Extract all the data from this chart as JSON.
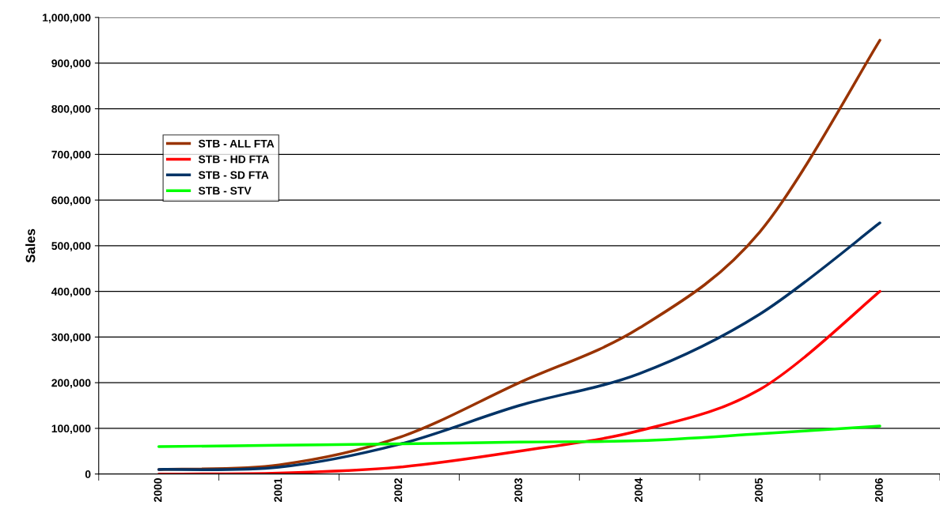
{
  "chart_data": {
    "type": "line",
    "ylabel": "Sales",
    "categories": [
      "2000",
      "2001",
      "2002",
      "2003",
      "2004",
      "2005",
      "2006"
    ],
    "series": [
      {
        "name": "STB - ALL FTA",
        "color": "#993300",
        "values": [
          10000,
          20000,
          80000,
          200000,
          320000,
          530000,
          950000
        ]
      },
      {
        "name": "STB - HD FTA",
        "color": "#ff0000",
        "values": [
          0,
          2000,
          15000,
          50000,
          95000,
          185000,
          400000
        ]
      },
      {
        "name": "STB - SD FTA",
        "color": "#003366",
        "values": [
          10000,
          15000,
          65000,
          150000,
          220000,
          350000,
          550000
        ]
      },
      {
        "name": "STB - STV",
        "color": "#00ff00",
        "values": [
          60000,
          63000,
          66000,
          70000,
          73000,
          88000,
          105000
        ]
      }
    ],
    "ylim": [
      0,
      1000000
    ],
    "yticks": [
      {
        "value": 0,
        "label": "0"
      },
      {
        "value": 100000,
        "label": "100,000"
      },
      {
        "value": 200000,
        "label": "200,000"
      },
      {
        "value": 300000,
        "label": "300,000"
      },
      {
        "value": 400000,
        "label": "400,000"
      },
      {
        "value": 500000,
        "label": "500,000"
      },
      {
        "value": 600000,
        "label": "600,000"
      },
      {
        "value": 700000,
        "label": "700,000"
      },
      {
        "value": 800000,
        "label": "800,000"
      },
      {
        "value": 900000,
        "label": "900,000"
      },
      {
        "value": 1000000,
        "label": "1,000,000"
      }
    ],
    "grid": "y",
    "legend": "left",
    "marker": "none",
    "line_style": "solid"
  }
}
